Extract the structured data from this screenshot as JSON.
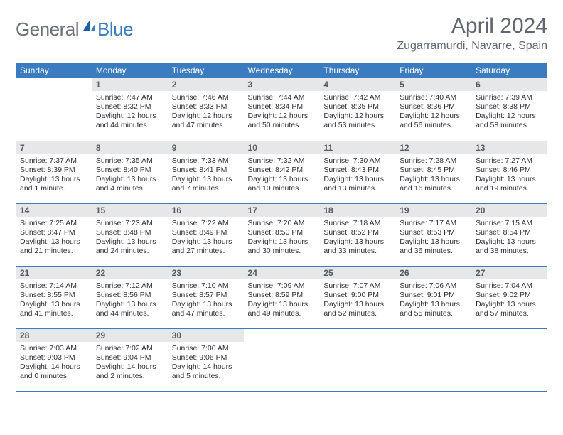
{
  "brand": {
    "general": "General",
    "blue": "Blue"
  },
  "page": {
    "title": "April 2024",
    "location": "Zugarramurdi, Navarre, Spain"
  },
  "colors": {
    "header_bg": "#3b7bbf",
    "header_text": "#ffffff",
    "daynum_bg": "#e6e7e9",
    "border": "#3b7bbf",
    "title_color": "#5f6670",
    "body_text": "#2d2f33"
  },
  "weekdays": [
    "Sunday",
    "Monday",
    "Tuesday",
    "Wednesday",
    "Thursday",
    "Friday",
    "Saturday"
  ],
  "weeks": [
    [
      {
        "blank": true
      },
      {
        "n": "1",
        "sr": "7:47 AM",
        "ss": "8:32 PM",
        "dl": "12 hours and 44 minutes."
      },
      {
        "n": "2",
        "sr": "7:46 AM",
        "ss": "8:33 PM",
        "dl": "12 hours and 47 minutes."
      },
      {
        "n": "3",
        "sr": "7:44 AM",
        "ss": "8:34 PM",
        "dl": "12 hours and 50 minutes."
      },
      {
        "n": "4",
        "sr": "7:42 AM",
        "ss": "8:35 PM",
        "dl": "12 hours and 53 minutes."
      },
      {
        "n": "5",
        "sr": "7:40 AM",
        "ss": "8:36 PM",
        "dl": "12 hours and 56 minutes."
      },
      {
        "n": "6",
        "sr": "7:39 AM",
        "ss": "8:38 PM",
        "dl": "12 hours and 58 minutes."
      }
    ],
    [
      {
        "n": "7",
        "sr": "7:37 AM",
        "ss": "8:39 PM",
        "dl": "13 hours and 1 minute."
      },
      {
        "n": "8",
        "sr": "7:35 AM",
        "ss": "8:40 PM",
        "dl": "13 hours and 4 minutes."
      },
      {
        "n": "9",
        "sr": "7:33 AM",
        "ss": "8:41 PM",
        "dl": "13 hours and 7 minutes."
      },
      {
        "n": "10",
        "sr": "7:32 AM",
        "ss": "8:42 PM",
        "dl": "13 hours and 10 minutes."
      },
      {
        "n": "11",
        "sr": "7:30 AM",
        "ss": "8:43 PM",
        "dl": "13 hours and 13 minutes."
      },
      {
        "n": "12",
        "sr": "7:28 AM",
        "ss": "8:45 PM",
        "dl": "13 hours and 16 minutes."
      },
      {
        "n": "13",
        "sr": "7:27 AM",
        "ss": "8:46 PM",
        "dl": "13 hours and 19 minutes."
      }
    ],
    [
      {
        "n": "14",
        "sr": "7:25 AM",
        "ss": "8:47 PM",
        "dl": "13 hours and 21 minutes."
      },
      {
        "n": "15",
        "sr": "7:23 AM",
        "ss": "8:48 PM",
        "dl": "13 hours and 24 minutes."
      },
      {
        "n": "16",
        "sr": "7:22 AM",
        "ss": "8:49 PM",
        "dl": "13 hours and 27 minutes."
      },
      {
        "n": "17",
        "sr": "7:20 AM",
        "ss": "8:50 PM",
        "dl": "13 hours and 30 minutes."
      },
      {
        "n": "18",
        "sr": "7:18 AM",
        "ss": "8:52 PM",
        "dl": "13 hours and 33 minutes."
      },
      {
        "n": "19",
        "sr": "7:17 AM",
        "ss": "8:53 PM",
        "dl": "13 hours and 36 minutes."
      },
      {
        "n": "20",
        "sr": "7:15 AM",
        "ss": "8:54 PM",
        "dl": "13 hours and 38 minutes."
      }
    ],
    [
      {
        "n": "21",
        "sr": "7:14 AM",
        "ss": "8:55 PM",
        "dl": "13 hours and 41 minutes."
      },
      {
        "n": "22",
        "sr": "7:12 AM",
        "ss": "8:56 PM",
        "dl": "13 hours and 44 minutes."
      },
      {
        "n": "23",
        "sr": "7:10 AM",
        "ss": "8:57 PM",
        "dl": "13 hours and 47 minutes."
      },
      {
        "n": "24",
        "sr": "7:09 AM",
        "ss": "8:59 PM",
        "dl": "13 hours and 49 minutes."
      },
      {
        "n": "25",
        "sr": "7:07 AM",
        "ss": "9:00 PM",
        "dl": "13 hours and 52 minutes."
      },
      {
        "n": "26",
        "sr": "7:06 AM",
        "ss": "9:01 PM",
        "dl": "13 hours and 55 minutes."
      },
      {
        "n": "27",
        "sr": "7:04 AM",
        "ss": "9:02 PM",
        "dl": "13 hours and 57 minutes."
      }
    ],
    [
      {
        "n": "28",
        "sr": "7:03 AM",
        "ss": "9:03 PM",
        "dl": "14 hours and 0 minutes."
      },
      {
        "n": "29",
        "sr": "7:02 AM",
        "ss": "9:04 PM",
        "dl": "14 hours and 2 minutes."
      },
      {
        "n": "30",
        "sr": "7:00 AM",
        "ss": "9:06 PM",
        "dl": "14 hours and 5 minutes."
      },
      {
        "blank": true
      },
      {
        "blank": true
      },
      {
        "blank": true
      },
      {
        "blank": true
      }
    ]
  ],
  "labels": {
    "sunrise": "Sunrise: ",
    "sunset": "Sunset: ",
    "daylight": "Daylight: "
  }
}
